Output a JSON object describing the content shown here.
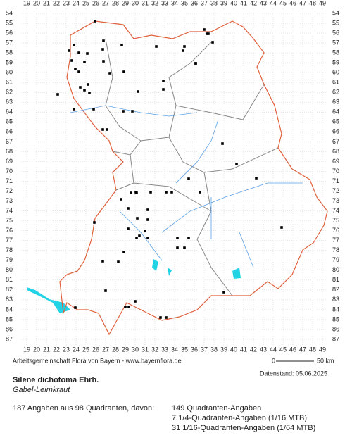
{
  "grid": {
    "columns": [
      19,
      20,
      21,
      22,
      23,
      24,
      25,
      26,
      27,
      28,
      29,
      30,
      31,
      32,
      33,
      34,
      35,
      36,
      37,
      38,
      39,
      40,
      41,
      42,
      43,
      44,
      45,
      46,
      47,
      48,
      49
    ],
    "rows": [
      54,
      55,
      56,
      57,
      58,
      59,
      60,
      61,
      62,
      63,
      64,
      65,
      66,
      67,
      68,
      69,
      70,
      71,
      72,
      73,
      74,
      75,
      76,
      77,
      78,
      79,
      80,
      81,
      82,
      83,
      84,
      85,
      86,
      87
    ]
  },
  "footer": {
    "credit": "Arbeitsgemeinschaft Flora von Bayern - www.bayernflora.de",
    "scale_start": "0",
    "scale_end": "50 km",
    "date": "Datenstand: 05.06.2025"
  },
  "species": {
    "name": "Silene dichotoma Ehrh.",
    "common_name": "Gabel-Leimkraut"
  },
  "stats": {
    "summary": "187 Angaben aus 98 Quadranten, davon:",
    "lines": [
      "149 Quadranten-Angaben",
      "7 1/4-Quadranten-Angaben (1/16 MTB)",
      "31 1/16-Quadranten-Angaben (1/64 MTB)"
    ]
  }
}
